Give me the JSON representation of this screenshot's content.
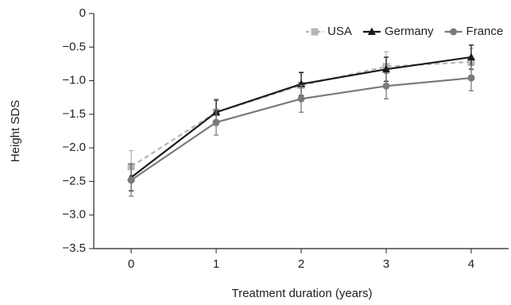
{
  "chart_data": {
    "type": "line",
    "x_label": "Treatment duration (years)",
    "y_label": "Height SDS",
    "x": [
      0,
      1,
      2,
      3,
      4
    ],
    "xlim": [
      -0.44,
      4.44
    ],
    "xticks": [
      0,
      1,
      2,
      3,
      4
    ],
    "ylim": [
      -3.5,
      0
    ],
    "yticks": [
      {
        "value": -3.5,
        "label": "−3.5"
      },
      {
        "value": -3.0,
        "label": "−3.0"
      },
      {
        "value": -2.5,
        "label": "−2.5"
      },
      {
        "value": -2.0,
        "label": "−2.0"
      },
      {
        "value": -1.5,
        "label": "−1.5"
      },
      {
        "value": -1.0,
        "label": "−1.0"
      },
      {
        "value": -0.5,
        "label": "−0.5"
      },
      0
    ],
    "legend": "top-right",
    "series": [
      {
        "name": "USA",
        "color": "#b5b5b5",
        "dash": true,
        "marker": "square",
        "values": [
          -2.28,
          -1.47,
          -1.07,
          -0.79,
          -0.72
        ],
        "errors": [
          0.24,
          0.2,
          0.2,
          0.22,
          0.2
        ]
      },
      {
        "name": "Germany",
        "color": "#1a1a1a",
        "dash": false,
        "marker": "triangle",
        "values": [
          -2.44,
          -1.47,
          -1.05,
          -0.83,
          -0.65
        ],
        "errors": [
          0.2,
          0.18,
          0.17,
          0.18,
          0.18
        ]
      },
      {
        "name": "France",
        "color": "#7a7a7a",
        "dash": false,
        "marker": "circle",
        "values": [
          -2.48,
          -1.62,
          -1.27,
          -1.08,
          -0.96
        ],
        "errors": [
          0.24,
          0.19,
          0.2,
          0.19,
          0.19
        ]
      }
    ]
  }
}
